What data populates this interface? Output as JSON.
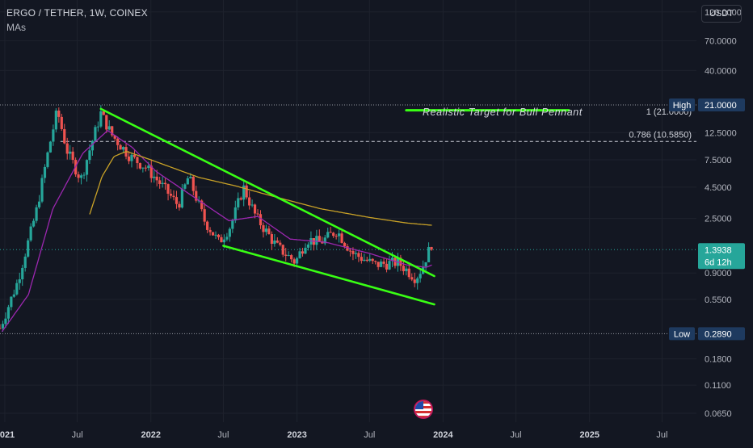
{
  "header": {
    "title": "ERGO / TETHER, 1W, COINEX",
    "indicator": "MAs"
  },
  "currency_button": "USDT",
  "annotation_text": "Realistic Target for Bull Pennant",
  "fib_levels": [
    {
      "label": "1 (21.0000)",
      "value": 21.0
    },
    {
      "label": "0.786 (10.5850)",
      "value": 10.585
    }
  ],
  "badges": {
    "high_label": "High",
    "high_value": "21.0000",
    "low_label": "Low",
    "low_value": "0.2890",
    "price_value": "1.3938",
    "countdown": "6d 12h"
  },
  "colors": {
    "background": "#131722",
    "up": "#26a69a",
    "down": "#ef5350",
    "trendline": "#39ff14",
    "ma_fast": "#9c27b0",
    "ma_slow": "#c9a227",
    "badge_bg": "#1e3a5f",
    "price_bg": "#26a69a"
  },
  "chart_data": {
    "type": "candlestick",
    "title": "ERGO / TETHER, 1W, COINEX",
    "y_scale": "log",
    "ylim": [
      0.055,
      150
    ],
    "y_ticks": [
      {
        "label": "120.0000",
        "value": 120
      },
      {
        "label": "70.0000",
        "value": 70
      },
      {
        "label": "40.0000",
        "value": 40
      },
      {
        "label": "12.5000",
        "value": 12.5
      },
      {
        "label": "7.5000",
        "value": 7.5
      },
      {
        "label": "4.5000",
        "value": 4.5
      },
      {
        "label": "2.5000",
        "value": 2.5
      },
      {
        "label": "0.9000",
        "value": 0.9
      },
      {
        "label": "0.5500",
        "value": 0.55
      },
      {
        "label": "0.1800",
        "value": 0.18
      },
      {
        "label": "0.1100",
        "value": 0.11
      },
      {
        "label": "0.0650",
        "value": 0.065
      }
    ],
    "x_range": [
      "2020-12-20",
      "2025-09-25"
    ],
    "x_ticks": [
      {
        "label": "2021",
        "date": "2021-01-01",
        "bold": true
      },
      {
        "label": "Jul",
        "date": "2021-07-01"
      },
      {
        "label": "2022",
        "date": "2022-01-01",
        "bold": true
      },
      {
        "label": "Jul",
        "date": "2022-07-01"
      },
      {
        "label": "2023",
        "date": "2023-01-01",
        "bold": true
      },
      {
        "label": "Jul",
        "date": "2023-07-01"
      },
      {
        "label": "2024",
        "date": "2024-01-01",
        "bold": true
      },
      {
        "label": "Jul",
        "date": "2024-07-01"
      },
      {
        "label": "2025",
        "date": "2025-01-01",
        "bold": true
      },
      {
        "label": "Jul",
        "date": "2025-07-01"
      }
    ],
    "price_anchors": [
      [
        "2020-12-20",
        0.32
      ],
      [
        "2021-02-01",
        0.75
      ],
      [
        "2021-03-20",
        2.8
      ],
      [
        "2021-04-20",
        9.0
      ],
      [
        "2021-05-12",
        19.0
      ],
      [
        "2021-06-05",
        9.0
      ],
      [
        "2021-07-10",
        5.2
      ],
      [
        "2021-08-05",
        10.0
      ],
      [
        "2021-08-29",
        18.0
      ],
      [
        "2021-09-25",
        12.0
      ],
      [
        "2021-11-10",
        8.0
      ],
      [
        "2021-12-20",
        6.5
      ],
      [
        "2022-02-01",
        4.5
      ],
      [
        "2022-03-10",
        3.2
      ],
      [
        "2022-04-05",
        5.5
      ],
      [
        "2022-05-15",
        2.4
      ],
      [
        "2022-06-20",
        1.6
      ],
      [
        "2022-07-20",
        2.2
      ],
      [
        "2022-08-20",
        4.5
      ],
      [
        "2022-09-20",
        2.6
      ],
      [
        "2022-11-10",
        1.5
      ],
      [
        "2022-12-28",
        1.1
      ],
      [
        "2023-01-25",
        1.7
      ],
      [
        "2023-03-01",
        1.6
      ],
      [
        "2023-04-10",
        2.0
      ],
      [
        "2023-05-20",
        1.3
      ],
      [
        "2023-07-15",
        1.05
      ],
      [
        "2023-09-10",
        1.1
      ],
      [
        "2023-10-25",
        0.82
      ],
      [
        "2023-11-10",
        1.0
      ],
      [
        "2023-11-25",
        1.35
      ],
      [
        "2023-12-03",
        1.3938
      ]
    ],
    "ma_fast_anchors": [
      [
        "2020-12-25",
        0.3
      ],
      [
        "2021-03-01",
        0.6
      ],
      [
        "2021-05-01",
        3.0
      ],
      [
        "2021-07-15",
        8.5
      ],
      [
        "2021-09-15",
        13.0
      ],
      [
        "2021-11-15",
        9.5
      ],
      [
        "2022-01-15",
        6.0
      ],
      [
        "2022-04-15",
        3.8
      ],
      [
        "2022-07-15",
        2.4
      ],
      [
        "2022-09-25",
        2.6
      ],
      [
        "2022-12-15",
        1.7
      ],
      [
        "2023-03-15",
        1.6
      ],
      [
        "2023-07-01",
        1.3
      ],
      [
        "2023-10-01",
        1.05
      ],
      [
        "2023-11-20",
        1.0
      ],
      [
        "2023-12-05",
        1.05
      ]
    ],
    "ma_slow_anchors": [
      [
        "2021-08-01",
        2.7
      ],
      [
        "2021-09-01",
        5.5
      ],
      [
        "2021-10-01",
        8.0
      ],
      [
        "2021-11-01",
        8.8
      ],
      [
        "2022-01-01",
        7.5
      ],
      [
        "2022-05-01",
        5.4
      ],
      [
        "2022-08-01",
        4.6
      ],
      [
        "2022-11-01",
        3.8
      ],
      [
        "2023-03-01",
        3.0
      ],
      [
        "2023-07-01",
        2.55
      ],
      [
        "2023-10-01",
        2.3
      ],
      [
        "2023-12-05",
        2.2
      ]
    ],
    "trendlines": [
      {
        "name": "upper",
        "from": [
          "2021-08-29",
          19.5
        ],
        "to": [
          "2023-12-10",
          0.85
        ]
      },
      {
        "name": "lower",
        "from": [
          "2022-07-01",
          1.5
        ],
        "to": [
          "2023-12-10",
          0.5
        ]
      },
      {
        "name": "target",
        "from": [
          "2023-10-01",
          19.0
        ],
        "to": [
          "2024-11-10",
          19.0
        ]
      }
    ],
    "high": 21.0,
    "low": 0.289,
    "last_price": 1.3938
  }
}
